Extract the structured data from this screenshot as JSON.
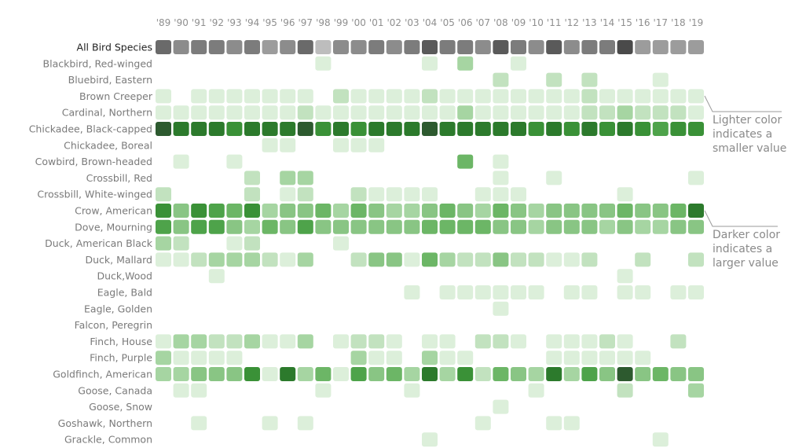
{
  "chart_data": {
    "type": "heatmap",
    "years": [
      "'89",
      "'90",
      "'91",
      "'92",
      "'93",
      "'94",
      "'95",
      "'96",
      "'97",
      "'98",
      "'99",
      "'00",
      "'01",
      "'02",
      "'03",
      "'04",
      "'05",
      "'06",
      "'07",
      "'08",
      "'09",
      "'10",
      "'11",
      "'12",
      "'13",
      "'14",
      "'15",
      "'16",
      "'17",
      "'18",
      "'19"
    ],
    "value_scale": "0 = no sighting, 1-9 = light to dark",
    "colors": {
      "total_scale": [
        "#bdbdbd",
        "#9c9c9c",
        "#8c8c8c",
        "#7c7c7c",
        "#6a6a6a",
        "#5a5a5a",
        "#4a4a4a"
      ],
      "species_scale": [
        "#edf6ec",
        "#dcefda",
        "#c2e2bf",
        "#a6d5a2",
        "#89c584",
        "#6cb666",
        "#4ea34a",
        "#3a9137",
        "#2c7a2c",
        "#2d5a2f"
      ],
      "annotation_line": "#9a9a9a"
    },
    "rows": [
      {
        "label": "All Bird Species",
        "total": true,
        "values": [
          5,
          3,
          4,
          4,
          3,
          4,
          2,
          3,
          5,
          1,
          3,
          3,
          4,
          3,
          4,
          6,
          4,
          4,
          3,
          6,
          4,
          3,
          6,
          3,
          4,
          4,
          7,
          2,
          2,
          2,
          2
        ]
      },
      {
        "label": "Blackbird, Red-winged",
        "values": [
          0,
          0,
          0,
          0,
          0,
          0,
          0,
          0,
          0,
          1,
          0,
          0,
          0,
          0,
          0,
          1,
          0,
          3,
          0,
          0,
          1,
          0,
          0,
          0,
          0,
          0,
          0,
          0,
          0,
          0,
          0
        ]
      },
      {
        "label": "Bluebird, Eastern",
        "values": [
          0,
          0,
          0,
          0,
          0,
          0,
          0,
          0,
          0,
          0,
          0,
          0,
          0,
          0,
          0,
          0,
          0,
          0,
          0,
          2,
          0,
          0,
          2,
          0,
          2,
          0,
          0,
          0,
          1,
          0,
          0
        ]
      },
      {
        "label": "Brown Creeper",
        "values": [
          1,
          0,
          1,
          1,
          1,
          1,
          1,
          1,
          1,
          0,
          2,
          1,
          1,
          1,
          1,
          2,
          1,
          1,
          1,
          1,
          1,
          1,
          1,
          1,
          2,
          1,
          1,
          1,
          1,
          1,
          1
        ]
      },
      {
        "label": "Cardinal, Northern",
        "values": [
          1,
          1,
          1,
          1,
          1,
          1,
          1,
          1,
          2,
          1,
          1,
          1,
          1,
          1,
          1,
          1,
          1,
          3,
          1,
          1,
          1,
          1,
          1,
          1,
          2,
          2,
          3,
          2,
          2,
          2,
          1
        ]
      },
      {
        "label": "Chickadee, Black-capped",
        "values": [
          9,
          8,
          8,
          8,
          7,
          8,
          8,
          8,
          9,
          7,
          8,
          7,
          8,
          8,
          8,
          9,
          8,
          8,
          8,
          8,
          8,
          7,
          8,
          7,
          8,
          7,
          8,
          7,
          6,
          7,
          7
        ]
      },
      {
        "label": "Chickadee, Boreal",
        "values": [
          0,
          0,
          0,
          0,
          0,
          0,
          1,
          1,
          0,
          0,
          1,
          1,
          1,
          0,
          0,
          0,
          0,
          0,
          0,
          0,
          0,
          0,
          0,
          0,
          0,
          0,
          0,
          0,
          0,
          0,
          0
        ]
      },
      {
        "label": "Cowbird, Brown-headed",
        "values": [
          0,
          1,
          0,
          0,
          1,
          0,
          0,
          0,
          0,
          0,
          0,
          0,
          0,
          0,
          0,
          0,
          0,
          5,
          0,
          1,
          0,
          0,
          0,
          0,
          0,
          0,
          0,
          0,
          0,
          0,
          0
        ]
      },
      {
        "label": "Crossbill, Red",
        "values": [
          0,
          0,
          0,
          0,
          0,
          2,
          0,
          3,
          3,
          0,
          0,
          0,
          0,
          0,
          0,
          0,
          0,
          0,
          0,
          1,
          0,
          0,
          1,
          0,
          0,
          0,
          0,
          0,
          0,
          0,
          1
        ]
      },
      {
        "label": "Crossbill, White-winged",
        "values": [
          2,
          0,
          0,
          0,
          0,
          2,
          0,
          1,
          2,
          0,
          0,
          2,
          1,
          1,
          1,
          1,
          0,
          0,
          1,
          1,
          1,
          0,
          0,
          0,
          0,
          0,
          1,
          0,
          0,
          0,
          0
        ]
      },
      {
        "label": "Crow, American",
        "values": [
          7,
          4,
          7,
          6,
          5,
          7,
          3,
          4,
          4,
          5,
          3,
          5,
          4,
          3,
          3,
          4,
          5,
          4,
          3,
          5,
          4,
          3,
          4,
          4,
          4,
          4,
          5,
          4,
          4,
          5,
          8
        ]
      },
      {
        "label": "Dove, Mourning",
        "values": [
          6,
          4,
          6,
          6,
          4,
          3,
          5,
          4,
          6,
          4,
          4,
          4,
          4,
          4,
          4,
          5,
          5,
          5,
          5,
          4,
          4,
          3,
          4,
          4,
          4,
          3,
          4,
          3,
          3,
          4,
          4
        ]
      },
      {
        "label": "Duck, American Black",
        "values": [
          3,
          2,
          0,
          0,
          1,
          2,
          0,
          0,
          0,
          0,
          1,
          0,
          0,
          0,
          0,
          0,
          0,
          0,
          0,
          0,
          0,
          0,
          0,
          0,
          0,
          0,
          0,
          0,
          0,
          0,
          0
        ]
      },
      {
        "label": "Duck, Mallard",
        "values": [
          1,
          1,
          2,
          3,
          3,
          3,
          2,
          1,
          3,
          0,
          0,
          2,
          4,
          4,
          1,
          5,
          3,
          2,
          2,
          4,
          2,
          2,
          1,
          1,
          2,
          0,
          0,
          2,
          0,
          0,
          2
        ]
      },
      {
        "label": "Duck,Wood",
        "values": [
          0,
          0,
          0,
          1,
          0,
          0,
          0,
          0,
          0,
          0,
          0,
          0,
          0,
          0,
          0,
          0,
          0,
          0,
          0,
          0,
          0,
          0,
          0,
          0,
          0,
          0,
          1,
          0,
          0,
          0,
          0
        ]
      },
      {
        "label": "Eagle, Bald",
        "values": [
          0,
          0,
          0,
          0,
          0,
          0,
          0,
          0,
          0,
          0,
          0,
          0,
          0,
          0,
          1,
          0,
          1,
          1,
          1,
          1,
          1,
          1,
          0,
          1,
          1,
          0,
          1,
          1,
          0,
          1,
          1
        ]
      },
      {
        "label": "Eagle, Golden",
        "values": [
          0,
          0,
          0,
          0,
          0,
          0,
          0,
          0,
          0,
          0,
          0,
          0,
          0,
          0,
          0,
          0,
          0,
          0,
          0,
          1,
          0,
          0,
          0,
          0,
          0,
          0,
          0,
          0,
          0,
          0,
          0
        ]
      },
      {
        "label": "Falcon, Peregrin",
        "values": [
          0,
          0,
          0,
          0,
          0,
          0,
          0,
          0,
          0,
          0,
          0,
          0,
          0,
          0,
          0,
          0,
          0,
          0,
          0,
          0,
          0,
          0,
          0,
          0,
          0,
          0,
          0,
          0,
          0,
          0,
          0
        ]
      },
      {
        "label": "Finch, House",
        "values": [
          1,
          3,
          3,
          2,
          2,
          3,
          1,
          1,
          3,
          0,
          1,
          2,
          2,
          1,
          0,
          1,
          1,
          0,
          2,
          2,
          1,
          0,
          1,
          1,
          1,
          2,
          1,
          0,
          0,
          2,
          0
        ]
      },
      {
        "label": "Finch, Purple",
        "values": [
          3,
          1,
          1,
          1,
          1,
          0,
          0,
          0,
          0,
          0,
          0,
          3,
          1,
          1,
          0,
          3,
          1,
          1,
          0,
          0,
          0,
          0,
          1,
          1,
          1,
          1,
          1,
          1,
          0,
          0,
          0
        ]
      },
      {
        "label": "Goldfinch, American",
        "values": [
          3,
          3,
          4,
          4,
          4,
          7,
          1,
          8,
          3,
          5,
          1,
          6,
          4,
          5,
          3,
          8,
          3,
          7,
          2,
          5,
          4,
          3,
          8,
          3,
          6,
          4,
          9,
          4,
          5,
          4,
          4
        ]
      },
      {
        "label": "Goose, Canada",
        "values": [
          0,
          1,
          1,
          0,
          0,
          0,
          0,
          0,
          0,
          1,
          0,
          0,
          0,
          0,
          1,
          0,
          0,
          0,
          0,
          0,
          0,
          1,
          0,
          0,
          0,
          0,
          2,
          0,
          0,
          0,
          3
        ]
      },
      {
        "label": "Goose, Snow",
        "values": [
          0,
          0,
          0,
          0,
          0,
          0,
          0,
          0,
          0,
          0,
          0,
          0,
          0,
          0,
          0,
          0,
          0,
          0,
          0,
          1,
          0,
          0,
          0,
          0,
          0,
          0,
          0,
          0,
          0,
          0,
          0
        ]
      },
      {
        "label": "Goshawk, Northern",
        "values": [
          0,
          0,
          1,
          0,
          0,
          0,
          1,
          0,
          1,
          0,
          0,
          0,
          0,
          0,
          0,
          0,
          0,
          0,
          1,
          0,
          0,
          0,
          1,
          1,
          0,
          0,
          0,
          0,
          0,
          0,
          0
        ]
      },
      {
        "label": "Grackle, Common",
        "values": [
          0,
          0,
          0,
          0,
          0,
          0,
          0,
          0,
          0,
          0,
          0,
          0,
          0,
          0,
          0,
          1,
          0,
          0,
          0,
          0,
          0,
          0,
          0,
          0,
          0,
          0,
          0,
          0,
          1,
          0,
          0
        ]
      }
    ]
  },
  "annotations": [
    {
      "lines": [
        "Lighter color",
        "indicates a",
        "smaller value"
      ]
    },
    {
      "lines": [
        "Darker color",
        "indicates a",
        "larger value"
      ]
    }
  ]
}
